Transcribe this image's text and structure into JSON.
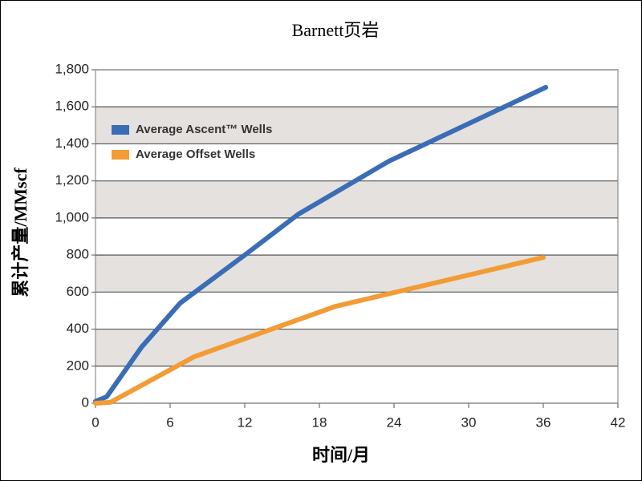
{
  "chart_data": {
    "type": "line",
    "title": "Barnett页岩",
    "x_label": "时间/月",
    "y_label": "累计产量/MMscf",
    "xlim": [
      0,
      42
    ],
    "xticks": [
      0,
      6,
      12,
      18,
      24,
      30,
      36,
      42
    ],
    "ylim": [
      0,
      1800
    ],
    "yticks": [
      0,
      200,
      400,
      600,
      800,
      {
        "value": 1000,
        "label": "1,000"
      },
      {
        "value": 1200,
        "label": "1,200"
      },
      {
        "value": 1400,
        "label": "1,400"
      },
      {
        "value": 1600,
        "label": "1,600"
      },
      {
        "value": 1800,
        "label": "1,800"
      }
    ],
    "grid": true,
    "legend": "upper-left",
    "series": [
      {
        "name": "Average Ascent™ Wells",
        "color": "#3a6db5",
        "x": [
          0,
          0.9,
          3.7,
          6.8,
          12,
          16.3,
          23.6,
          36.2
        ],
        "values": [
          10,
          35,
          303,
          540,
          800,
          1020,
          1307,
          1705
        ]
      },
      {
        "name": "Average Offset Wells",
        "color": "#f39b35",
        "x": [
          0,
          1.2,
          7.9,
          19.3,
          36
        ],
        "values": [
          0,
          5,
          250,
          523,
          787
        ]
      }
    ]
  }
}
